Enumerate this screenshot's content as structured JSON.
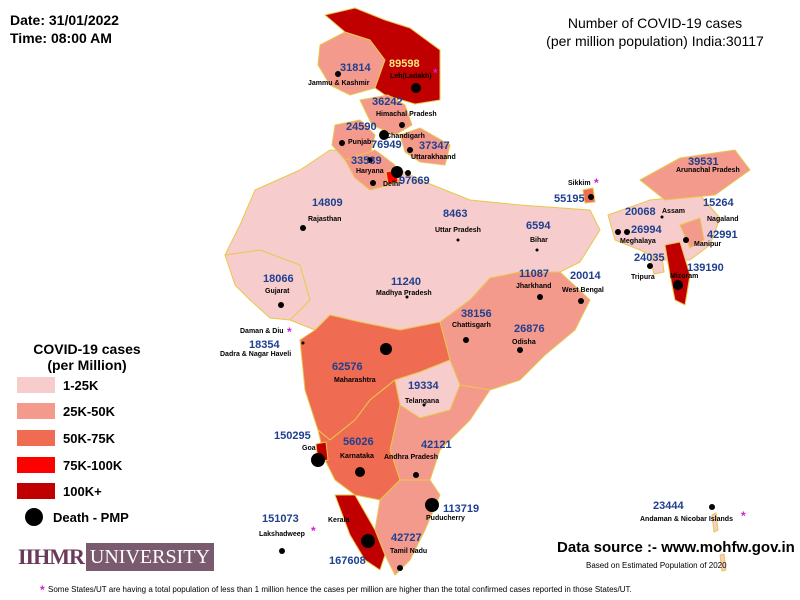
{
  "header": {
    "date": "Date: 31/01/2022",
    "time": "Time: 08:00 AM"
  },
  "title": {
    "line1": "Number of COVID-19 cases",
    "line2": "(per million population) India:30117"
  },
  "legend": {
    "title_line1": "COVID-19 cases",
    "title_line2": "(per Million)",
    "items": [
      {
        "label": "1-25K",
        "color": "#f7cccc"
      },
      {
        "label": "25K-50K",
        "color": "#f39a8c"
      },
      {
        "label": "50K-75K",
        "color": "#ef6b52"
      },
      {
        "label": "75K-100K",
        "color": "#ff0000"
      },
      {
        "label": "100K+",
        "color": "#c00000"
      }
    ],
    "death_label": "Death - PMP"
  },
  "regions": [
    {
      "name": "Leh(Ladakh)",
      "value": "89598"
    },
    {
      "name": "Jammu & Kashmir",
      "value": "31814"
    },
    {
      "name": "Himachal Pradesh",
      "value": "36242"
    },
    {
      "name": "Chandigarh",
      "value": "24590"
    },
    {
      "name": "Punjab",
      "value": "76949"
    },
    {
      "name": "Uttarakhaand",
      "value": "37347"
    },
    {
      "name": "Haryana",
      "value": "33539"
    },
    {
      "name": "Delhi",
      "value": "97669"
    },
    {
      "name": "Rajasthan",
      "value": "14809"
    },
    {
      "name": "Uttar Pradesh",
      "value": "8463"
    },
    {
      "name": "Bihar",
      "value": "6594"
    },
    {
      "name": "Sikkim",
      "value": "55195"
    },
    {
      "name": "Arunachal Pradesh",
      "value": "39531"
    },
    {
      "name": "Assam",
      "value": "20068"
    },
    {
      "name": "Nagaland",
      "value": "15264"
    },
    {
      "name": "Meghalaya",
      "value": "26994"
    },
    {
      "name": "Manipur",
      "value": "42991"
    },
    {
      "name": "Tripura",
      "value": "24035"
    },
    {
      "name": "Mizoram",
      "value": "139190"
    },
    {
      "name": "Gujarat",
      "value": "18066"
    },
    {
      "name": "Madhya Pradesh",
      "value": "11240"
    },
    {
      "name": "Jharkhand",
      "value": "11087"
    },
    {
      "name": "West Bengal",
      "value": "20014"
    },
    {
      "name": "Chattisgarh",
      "value": "38156"
    },
    {
      "name": "Odisha",
      "value": "26876"
    },
    {
      "name": "Daman & Diu",
      "value": ""
    },
    {
      "name": "Dadra & Nagar Haveli",
      "value": "18354"
    },
    {
      "name": "Maharashtra",
      "value": "62576"
    },
    {
      "name": "Telangana",
      "value": "19334"
    },
    {
      "name": "Goa",
      "value": "150295"
    },
    {
      "name": "Karnataka",
      "value": "56026"
    },
    {
      "name": "Andhra Pradesh",
      "value": "42121"
    },
    {
      "name": "Kerala",
      "value": ""
    },
    {
      "name": "Puducherry",
      "value": "113719"
    },
    {
      "name": "Lakshadweep",
      "value": "151073"
    },
    {
      "name": "Tamil Nadu",
      "value": "42727"
    },
    {
      "name": "Andaman & Nicobar Islands",
      "value": "23444"
    }
  ],
  "kerala_value": "167608",
  "brand": {
    "part1": "IIHMR",
    "part2": "UNIVERSITY"
  },
  "source": "Data source :- www.mohfw.gov.in",
  "based_on": "Based on Estimated Population of 2020",
  "footnote": "Some States/UT are having a total population of less than 1 million hence the cases per million are higher than the total confirmed cases reported in those States/UT."
}
